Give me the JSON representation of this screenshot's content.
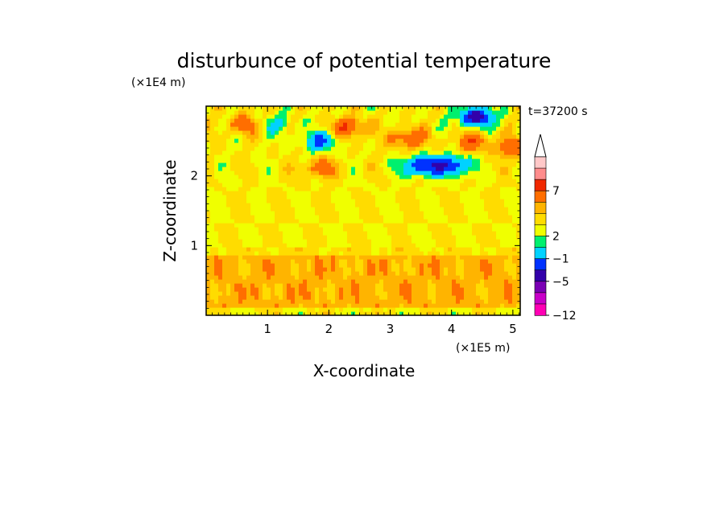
{
  "chart_data": {
    "type": "heatmap",
    "title": "disturbunce of potential temperature",
    "xlabel": "X-coordinate",
    "ylabel": "Z-coordinate",
    "x_unit": "(×1E5 m)",
    "y_unit": "(×1E4 m)",
    "time_label": "t=37200 s",
    "xlim": [
      0,
      5.12
    ],
    "ylim": [
      0,
      3.0
    ],
    "x_ticks": [
      "1",
      "2",
      "3",
      "4",
      "5"
    ],
    "y_ticks": [
      "1",
      "2"
    ],
    "colorbar": {
      "levels": [
        -12,
        -9,
        -7,
        -5,
        -3,
        -1,
        0,
        1,
        2,
        3,
        5,
        7,
        9
      ],
      "labels": [
        "7",
        "2",
        "−1",
        "−5",
        "−12"
      ],
      "colors": [
        "#ff00b4",
        "#c800c8",
        "#7a00b4",
        "#3200aa",
        "#0032ff",
        "#00d2ff",
        "#00f06e",
        "#f0ff00",
        "#ffdc00",
        "#ffb400",
        "#ff6e00",
        "#f02800",
        "#ff8c8c",
        "#ffc8c8"
      ]
    },
    "field_summary": {
      "background_level": 1,
      "lower_layer_z": [
        0,
        1.0
      ],
      "lower_layer_value": 2.5,
      "upper_layer_z": [
        1.0,
        3.0
      ],
      "features": [
        {
          "x": 3.5,
          "z": 2.15,
          "value": -6
        },
        {
          "x": 3.3,
          "z": 2.55,
          "value": 4
        },
        {
          "x": 4.4,
          "z": 2.85,
          "value": -7
        },
        {
          "x": 4.0,
          "z": 2.15,
          "value": -6
        },
        {
          "x": 4.35,
          "z": 2.5,
          "value": 3.5
        },
        {
          "x": 1.85,
          "z": 2.5,
          "value": -4
        },
        {
          "x": 2.35,
          "z": 2.7,
          "value": 4
        },
        {
          "x": 1.85,
          "z": 2.12,
          "value": 3
        },
        {
          "x": 0.6,
          "z": 2.75,
          "value": 3
        },
        {
          "x": 1.15,
          "z": 2.75,
          "value": -2
        },
        {
          "x": 5.0,
          "z": 2.4,
          "value": 3.5
        }
      ]
    }
  }
}
